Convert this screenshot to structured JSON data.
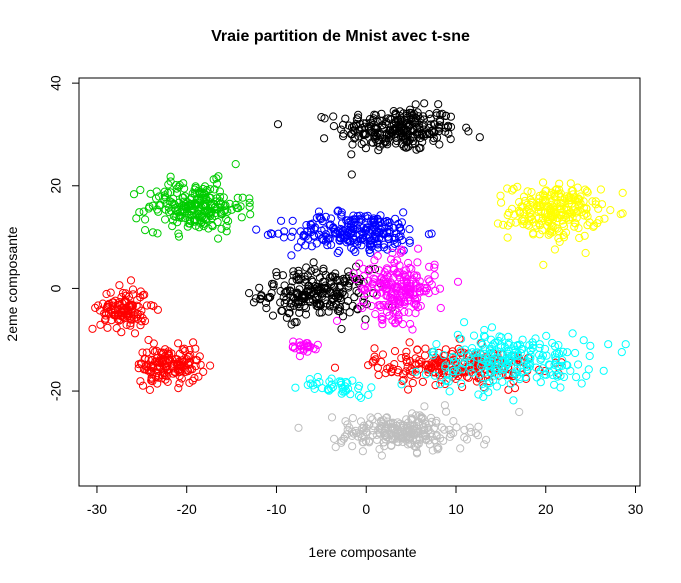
{
  "chart_data": {
    "type": "scatter",
    "title": "Vraie partition de Mnist avec t-sne",
    "xlabel": "1ere composante",
    "ylabel": "2eme composante",
    "xlim": [
      -32,
      30.5
    ],
    "ylim": [
      -38.5,
      41
    ],
    "xticks": [
      -30,
      -20,
      -10,
      0,
      10,
      20,
      30
    ],
    "yticks": [
      -20,
      0,
      20,
      40
    ],
    "xtick_labels": [
      "-30",
      "-20",
      "-10",
      "0",
      "10",
      "20",
      "30"
    ],
    "ytick_labels": [
      "-20",
      "0",
      "20",
      "40"
    ],
    "marker": "open-circle",
    "series": [
      {
        "name": "black",
        "color": "#000000",
        "clusters": [
          {
            "center": [
              3.5,
              31
            ],
            "spread": [
              5.5,
              3.5
            ],
            "n": 260
          },
          {
            "center": [
              -5.5,
              -1
            ],
            "spread": [
              5.0,
              4.0
            ],
            "n": 230
          }
        ]
      },
      {
        "name": "yellow",
        "color": "#ffff00",
        "clusters": [
          {
            "center": [
              21,
              15
            ],
            "spread": [
              4.2,
              4.5
            ],
            "n": 230
          }
        ]
      },
      {
        "name": "green",
        "color": "#00cc00",
        "clusters": [
          {
            "center": [
              -19,
              16
            ],
            "spread": [
              4.5,
              4.0
            ],
            "n": 230
          }
        ]
      },
      {
        "name": "blue",
        "color": "#0000ff",
        "clusters": [
          {
            "center": [
              -1,
              11
            ],
            "spread": [
              6.0,
              3.2
            ],
            "n": 240
          }
        ]
      },
      {
        "name": "magenta",
        "color": "#ff00ff",
        "clusters": [
          {
            "center": [
              3.5,
              0
            ],
            "spread": [
              3.5,
              5.0
            ],
            "n": 210
          },
          {
            "center": [
              -7,
              -11.5
            ],
            "spread": [
              1.5,
              1.2
            ],
            "n": 25
          }
        ]
      },
      {
        "name": "red",
        "color": "#ff0000",
        "clusters": [
          {
            "center": [
              -27,
              -4
            ],
            "spread": [
              2.2,
              3.5
            ],
            "n": 120
          },
          {
            "center": [
              -22,
              -15
            ],
            "spread": [
              3.0,
              3.0
            ],
            "n": 150
          },
          {
            "center": [
              10,
              -15
            ],
            "spread": [
              7.5,
              3.0
            ],
            "n": 230
          }
        ]
      },
      {
        "name": "cyan",
        "color": "#00ffff",
        "clusters": [
          {
            "center": [
              16,
              -14
            ],
            "spread": [
              7.5,
              4.5
            ],
            "n": 230
          },
          {
            "center": [
              -3,
              -19
            ],
            "spread": [
              3.5,
              1.5
            ],
            "n": 40
          }
        ]
      },
      {
        "name": "gray",
        "color": "#bebebe",
        "clusters": [
          {
            "center": [
              4,
              -28
            ],
            "spread": [
              6.0,
              3.0
            ],
            "n": 240
          }
        ]
      }
    ]
  }
}
